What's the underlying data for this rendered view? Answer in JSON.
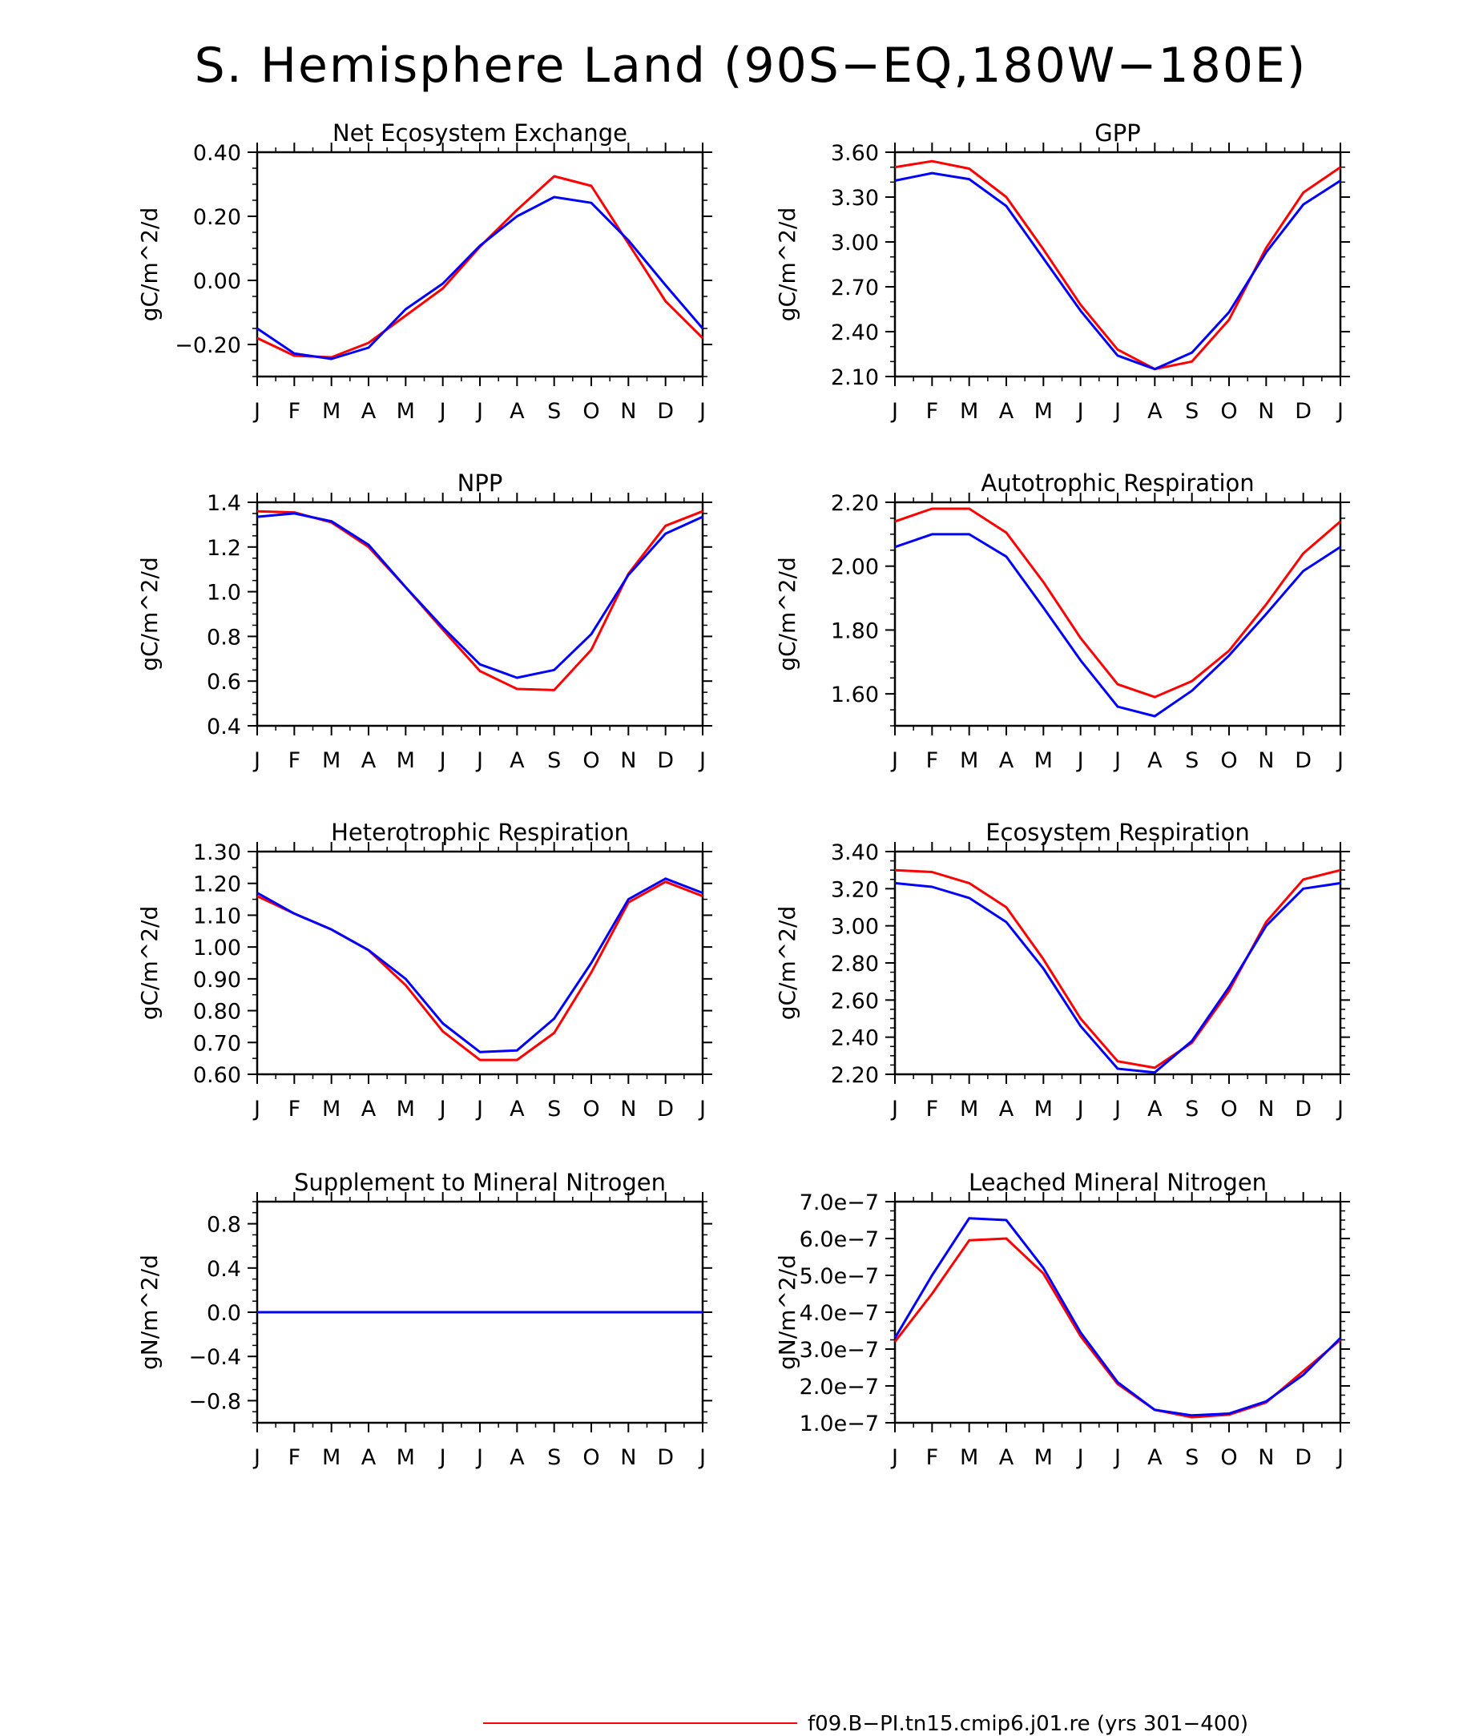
{
  "title": "S. Hemisphere Land (90S−EQ,180W−180E)",
  "colors": {
    "series1": "#ff0000",
    "series2": "#0000ff",
    "axis": "#000000"
  },
  "legend": {
    "entries": [
      {
        "label": "f09.B−PI.tn15.cmip6.j01.re (yrs 301−400)",
        "color": "#ff0000"
      }
    ]
  },
  "chart_data": [
    {
      "type": "line",
      "title": "Net Ecosystem Exchange",
      "ylabel": "gC/m^2/d",
      "xlabel": "",
      "x": [
        "J",
        "F",
        "M",
        "A",
        "M",
        "J",
        "J",
        "A",
        "S",
        "O",
        "N",
        "D",
        "J"
      ],
      "ylim": [
        -0.3,
        0.4
      ],
      "yticks": [
        -0.2,
        0.0,
        0.2,
        0.4
      ],
      "ytick_labels": [
        "−0.20",
        "0.00",
        "0.20",
        "0.40"
      ],
      "yminor_step": 0.05,
      "series": [
        {
          "color": "#ff0000",
          "values": [
            -0.18,
            -0.235,
            -0.24,
            -0.195,
            -0.11,
            -0.025,
            0.105,
            0.22,
            0.325,
            0.295,
            0.115,
            -0.065,
            -0.18
          ]
        },
        {
          "color": "#0000ff",
          "values": [
            -0.15,
            -0.228,
            -0.245,
            -0.21,
            -0.09,
            -0.01,
            0.108,
            0.2,
            0.26,
            0.242,
            0.125,
            -0.015,
            -0.15
          ]
        }
      ]
    },
    {
      "type": "line",
      "title": "GPP",
      "ylabel": "gC/m^2/d",
      "xlabel": "",
      "x": [
        "J",
        "F",
        "M",
        "A",
        "M",
        "J",
        "J",
        "A",
        "S",
        "O",
        "N",
        "D",
        "J"
      ],
      "ylim": [
        2.1,
        3.6
      ],
      "yticks": [
        2.1,
        2.4,
        2.7,
        3.0,
        3.3,
        3.6
      ],
      "ytick_labels": [
        "2.10",
        "2.40",
        "2.70",
        "3.00",
        "3.30",
        "3.60"
      ],
      "yminor_step": 0.1,
      "series": [
        {
          "color": "#ff0000",
          "values": [
            3.5,
            3.54,
            3.49,
            3.3,
            2.95,
            2.58,
            2.28,
            2.15,
            2.2,
            2.48,
            2.96,
            3.33,
            3.5
          ]
        },
        {
          "color": "#0000ff",
          "values": [
            3.41,
            3.46,
            3.42,
            3.24,
            2.89,
            2.54,
            2.24,
            2.15,
            2.26,
            2.53,
            2.93,
            3.25,
            3.41
          ]
        }
      ]
    },
    {
      "type": "line",
      "title": "NPP",
      "ylabel": "gC/m^2/d",
      "xlabel": "",
      "x": [
        "J",
        "F",
        "M",
        "A",
        "M",
        "J",
        "J",
        "A",
        "S",
        "O",
        "N",
        "D",
        "J"
      ],
      "ylim": [
        0.4,
        1.4
      ],
      "yticks": [
        0.4,
        0.6,
        0.8,
        1.0,
        1.2,
        1.4
      ],
      "ytick_labels": [
        "0.4",
        "0.6",
        "0.8",
        "1.0",
        "1.2",
        "1.4"
      ],
      "yminor_step": 0.05,
      "series": [
        {
          "color": "#ff0000",
          "values": [
            1.36,
            1.355,
            1.31,
            1.2,
            1.02,
            0.83,
            0.645,
            0.565,
            0.56,
            0.74,
            1.08,
            1.295,
            1.36
          ]
        },
        {
          "color": "#0000ff",
          "values": [
            1.335,
            1.35,
            1.315,
            1.21,
            1.02,
            0.84,
            0.675,
            0.615,
            0.65,
            0.81,
            1.075,
            1.26,
            1.335
          ]
        }
      ]
    },
    {
      "type": "line",
      "title": "Autotrophic Respiration",
      "ylabel": "gC/m^2/d",
      "xlabel": "",
      "x": [
        "J",
        "F",
        "M",
        "A",
        "M",
        "J",
        "J",
        "A",
        "S",
        "O",
        "N",
        "D",
        "J"
      ],
      "ylim": [
        1.5,
        2.2
      ],
      "yticks": [
        1.6,
        1.8,
        2.0,
        2.2
      ],
      "ytick_labels": [
        "1.60",
        "1.80",
        "2.00",
        "2.20"
      ],
      "yminor_step": 0.05,
      "series": [
        {
          "color": "#ff0000",
          "values": [
            2.14,
            2.18,
            2.18,
            2.105,
            1.95,
            1.775,
            1.63,
            1.59,
            1.64,
            1.735,
            1.88,
            2.04,
            2.14
          ]
        },
        {
          "color": "#0000ff",
          "values": [
            2.06,
            2.1,
            2.1,
            2.03,
            1.87,
            1.705,
            1.56,
            1.53,
            1.61,
            1.72,
            1.85,
            1.985,
            2.06
          ]
        }
      ]
    },
    {
      "type": "line",
      "title": "Heterotrophic Respiration",
      "ylabel": "gC/m^2/d",
      "xlabel": "",
      "x": [
        "J",
        "F",
        "M",
        "A",
        "M",
        "J",
        "J",
        "A",
        "S",
        "O",
        "N",
        "D",
        "J"
      ],
      "ylim": [
        0.6,
        1.3
      ],
      "yticks": [
        0.6,
        0.7,
        0.8,
        0.9,
        1.0,
        1.1,
        1.2,
        1.3
      ],
      "ytick_labels": [
        "0.60",
        "0.70",
        "0.80",
        "0.90",
        "1.00",
        "1.10",
        "1.20",
        "1.30"
      ],
      "yminor_step": 0.05,
      "series": [
        {
          "color": "#ff0000",
          "values": [
            1.16,
            1.105,
            1.055,
            0.99,
            0.88,
            0.735,
            0.645,
            0.645,
            0.73,
            0.92,
            1.14,
            1.205,
            1.16
          ]
        },
        {
          "color": "#0000ff",
          "values": [
            1.17,
            1.105,
            1.055,
            0.99,
            0.9,
            0.76,
            0.67,
            0.675,
            0.775,
            0.95,
            1.15,
            1.215,
            1.17
          ]
        }
      ]
    },
    {
      "type": "line",
      "title": "Ecosystem Respiration",
      "ylabel": "gC/m^2/d",
      "xlabel": "",
      "x": [
        "J",
        "F",
        "M",
        "A",
        "M",
        "J",
        "J",
        "A",
        "S",
        "O",
        "N",
        "D",
        "J"
      ],
      "ylim": [
        2.2,
        3.4
      ],
      "yticks": [
        2.2,
        2.4,
        2.6,
        2.8,
        3.0,
        3.2,
        3.4
      ],
      "ytick_labels": [
        "2.20",
        "2.40",
        "2.60",
        "2.80",
        "3.00",
        "3.20",
        "3.40"
      ],
      "yminor_step": 0.05,
      "series": [
        {
          "color": "#ff0000",
          "values": [
            3.3,
            3.29,
            3.23,
            3.1,
            2.82,
            2.5,
            2.27,
            2.235,
            2.37,
            2.65,
            3.02,
            3.25,
            3.3
          ]
        },
        {
          "color": "#0000ff",
          "values": [
            3.23,
            3.21,
            3.15,
            3.02,
            2.77,
            2.46,
            2.23,
            2.21,
            2.38,
            2.67,
            3.0,
            3.2,
            3.23
          ]
        }
      ]
    },
    {
      "type": "line",
      "title": "Supplement to Mineral Nitrogen",
      "ylabel": "gN/m^2/d",
      "xlabel": "",
      "x": [
        "J",
        "F",
        "M",
        "A",
        "M",
        "J",
        "J",
        "A",
        "S",
        "O",
        "N",
        "D",
        "J"
      ],
      "ylim": [
        -1.0,
        1.0
      ],
      "yticks": [
        -0.8,
        -0.4,
        0.0,
        0.4,
        0.8
      ],
      "ytick_labels": [
        "−0.8",
        "−0.4",
        "0.0",
        "0.4",
        "0.8"
      ],
      "yminor_step": 0.1,
      "series": [
        {
          "color": "#ff0000",
          "values": [
            0,
            0,
            0,
            0,
            0,
            0,
            0,
            0,
            0,
            0,
            0,
            0,
            0
          ]
        },
        {
          "color": "#0000ff",
          "values": [
            0,
            0,
            0,
            0,
            0,
            0,
            0,
            0,
            0,
            0,
            0,
            0,
            0
          ]
        }
      ]
    },
    {
      "type": "line",
      "title": "Leached Mineral Nitrogen",
      "ylabel": "gN/m^2/d",
      "xlabel": "",
      "x": [
        "J",
        "F",
        "M",
        "A",
        "M",
        "J",
        "J",
        "A",
        "S",
        "O",
        "N",
        "D",
        "J"
      ],
      "ylim": [
        1e-07,
        7e-07
      ],
      "yticks": [
        1e-07,
        2e-07,
        3e-07,
        4e-07,
        5e-07,
        6e-07,
        7e-07
      ],
      "ytick_labels": [
        "1.0e−7",
        "2.0e−7",
        "3.0e−7",
        "4.0e−7",
        "5.0e−7",
        "6.0e−7",
        "7.0e−7"
      ],
      "yminor_step": 2.5e-08,
      "series": [
        {
          "color": "#ff0000",
          "values": [
            3.2e-07,
            4.5e-07,
            5.95e-07,
            6e-07,
            5.05e-07,
            3.35e-07,
            2.05e-07,
            1.35e-07,
            1.15e-07,
            1.22e-07,
            1.55e-07,
            2.4e-07,
            3.25e-07
          ]
        },
        {
          "color": "#0000ff",
          "values": [
            3.3e-07,
            5e-07,
            6.55e-07,
            6.5e-07,
            5.2e-07,
            3.45e-07,
            2.1e-07,
            1.35e-07,
            1.2e-07,
            1.25e-07,
            1.58e-07,
            2.3e-07,
            3.3e-07
          ]
        }
      ]
    }
  ]
}
